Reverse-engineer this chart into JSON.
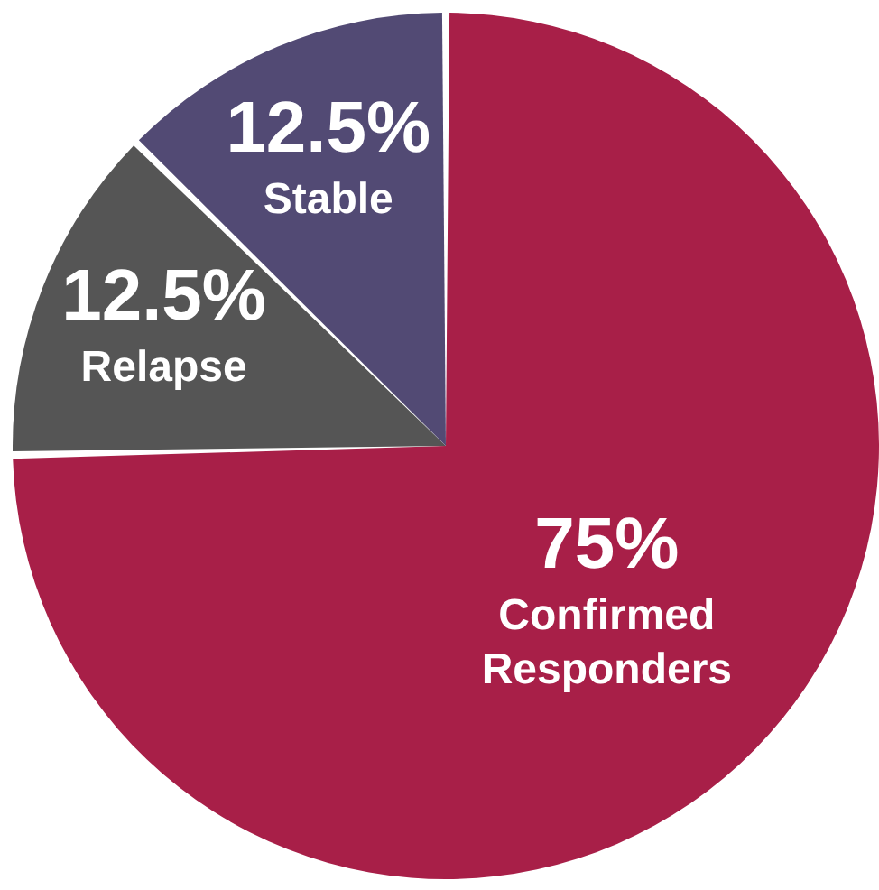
{
  "chart_data": {
    "type": "pie",
    "categories": [
      "Confirmed Responders",
      "Relapse",
      "Stable"
    ],
    "values": [
      75,
      12.5,
      12.5
    ],
    "colors": [
      "#a81f48",
      "#555555",
      "#524a74"
    ],
    "value_labels": [
      "75%",
      "12.5%",
      "12.5%"
    ]
  }
}
